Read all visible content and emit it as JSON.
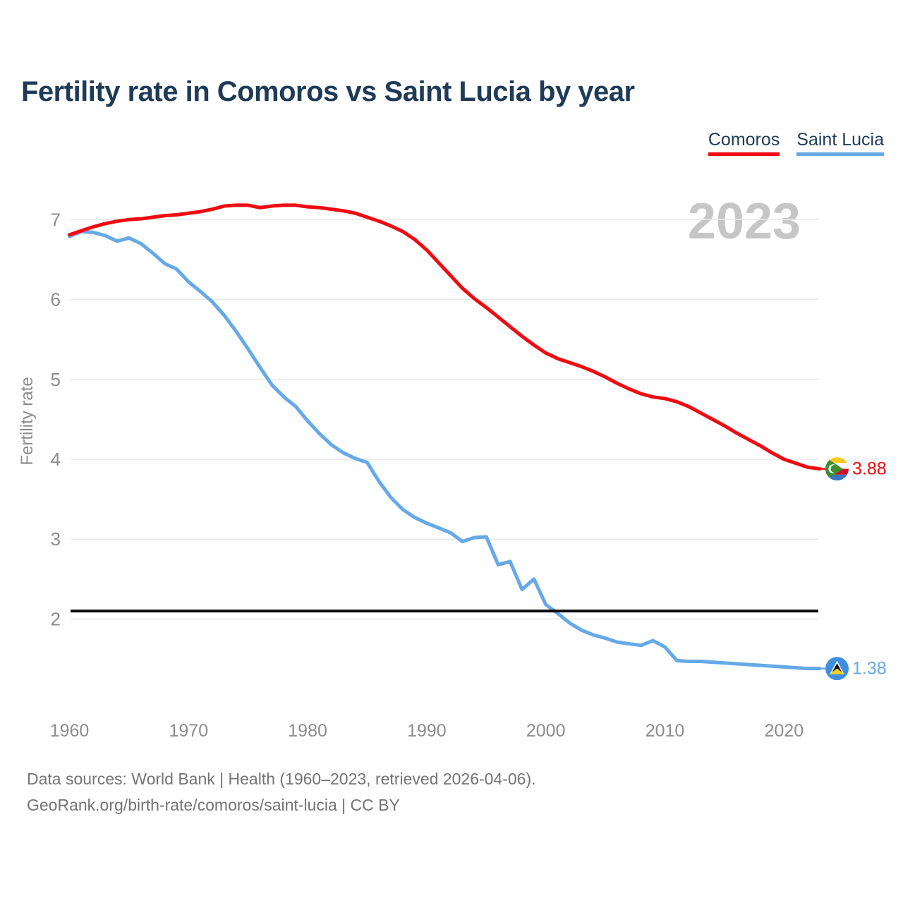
{
  "header": {
    "title": "Fertility rate in Comoros vs Saint Lucia by year"
  },
  "legend": {
    "items": [
      {
        "label": "Comoros",
        "color": "#f00a12"
      },
      {
        "label": "Saint Lucia",
        "color": "#66a9e7"
      }
    ]
  },
  "watermark": "2023",
  "footer": {
    "line1": "Data sources: World Bank | Health (1960–2023, retrieved 2026-04-06).",
    "line2": "GeoRank.org/birth-rate/comoros/saint-lucia | CC BY"
  },
  "chart_data": {
    "type": "line",
    "title": "Fertility rate in Comoros vs Saint Lucia by year",
    "xlabel": "",
    "ylabel": "Fertility rate",
    "xlim": [
      1960,
      2023
    ],
    "ylim": [
      1.3,
      7.3
    ],
    "x_ticks": [
      1960,
      1970,
      1980,
      1990,
      2000,
      2010,
      2020
    ],
    "y_ticks": [
      2,
      3,
      4,
      5,
      6,
      7
    ],
    "grid": true,
    "legend_position": "top-right",
    "watermark": "2023",
    "tick_color": "#8c8c8c",
    "grid_color": "#e8e8e8",
    "reference_line": {
      "value": 2.1,
      "color": "#0b0b0b"
    },
    "years": [
      1960,
      1961,
      1962,
      1963,
      1964,
      1965,
      1966,
      1967,
      1968,
      1969,
      1970,
      1971,
      1972,
      1973,
      1974,
      1975,
      1976,
      1977,
      1978,
      1979,
      1980,
      1981,
      1982,
      1983,
      1984,
      1985,
      1986,
      1987,
      1988,
      1989,
      1990,
      1991,
      1992,
      1993,
      1994,
      1995,
      1996,
      1997,
      1998,
      1999,
      2000,
      2001,
      2002,
      2003,
      2004,
      2005,
      2006,
      2007,
      2008,
      2009,
      2010,
      2011,
      2012,
      2013,
      2014,
      2015,
      2016,
      2017,
      2018,
      2019,
      2020,
      2021,
      2022,
      2023
    ],
    "series": [
      {
        "name": "Comoros",
        "color": "#f00a12",
        "end_label": "3.88",
        "flag": "comoros",
        "values": [
          6.81,
          6.86,
          6.91,
          6.95,
          6.98,
          7.0,
          7.01,
          7.03,
          7.05,
          7.06,
          7.08,
          7.1,
          7.13,
          7.17,
          7.18,
          7.18,
          7.15,
          7.17,
          7.18,
          7.18,
          7.16,
          7.15,
          7.13,
          7.11,
          7.08,
          7.03,
          6.98,
          6.92,
          6.85,
          6.75,
          6.62,
          6.46,
          6.3,
          6.14,
          6.01,
          5.9,
          5.78,
          5.66,
          5.54,
          5.43,
          5.33,
          5.26,
          5.21,
          5.16,
          5.1,
          5.03,
          4.95,
          4.88,
          4.82,
          4.78,
          4.76,
          4.72,
          4.66,
          4.58,
          4.5,
          4.42,
          4.33,
          4.25,
          4.17,
          4.08,
          4.0,
          3.95,
          3.9,
          3.88
        ]
      },
      {
        "name": "Saint Lucia",
        "color": "#66a9e7",
        "end_label": "1.38",
        "flag": "saint-lucia",
        "values": [
          6.79,
          6.85,
          6.84,
          6.8,
          6.73,
          6.77,
          6.7,
          6.58,
          6.45,
          6.38,
          6.22,
          6.1,
          5.97,
          5.8,
          5.6,
          5.38,
          5.15,
          4.93,
          4.78,
          4.66,
          4.48,
          4.32,
          4.18,
          4.08,
          4.01,
          3.96,
          3.72,
          3.52,
          3.37,
          3.27,
          3.2,
          3.14,
          3.08,
          2.97,
          3.02,
          3.03,
          2.68,
          2.72,
          2.37,
          2.5,
          2.18,
          2.07,
          1.95,
          1.86,
          1.8,
          1.76,
          1.71,
          1.69,
          1.67,
          1.73,
          1.65,
          1.48,
          1.47,
          1.47,
          1.46,
          1.45,
          1.44,
          1.43,
          1.42,
          1.41,
          1.4,
          1.39,
          1.38,
          1.38
        ]
      }
    ]
  }
}
